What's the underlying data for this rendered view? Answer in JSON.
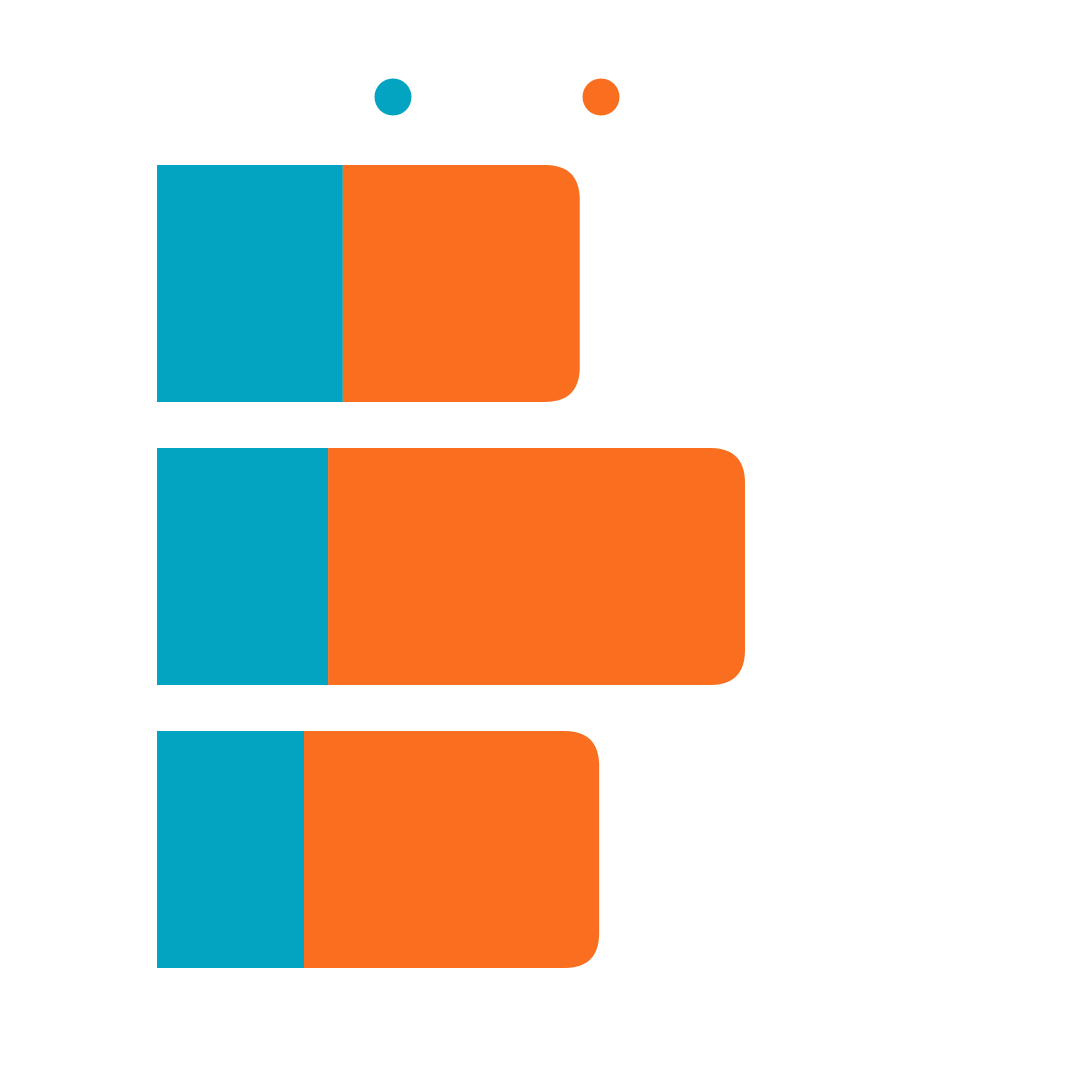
{
  "chart_data": {
    "type": "bar",
    "orientation": "horizontal",
    "stacked": true,
    "title": "",
    "xlabel": "",
    "ylabel": "",
    "categories": [
      "",
      "",
      ""
    ],
    "series": [
      {
        "color": "#02a4c1",
        "values": [
          31.6,
          29.1,
          25.0
        ]
      },
      {
        "color": "#f96f1f",
        "values": [
          40.3,
          70.9,
          50.2
        ]
      }
    ],
    "xlim": [
      0,
      100
    ],
    "grid": false,
    "legend": {
      "placement": "top",
      "markers": [
        "circle",
        "circle"
      ]
    }
  }
}
